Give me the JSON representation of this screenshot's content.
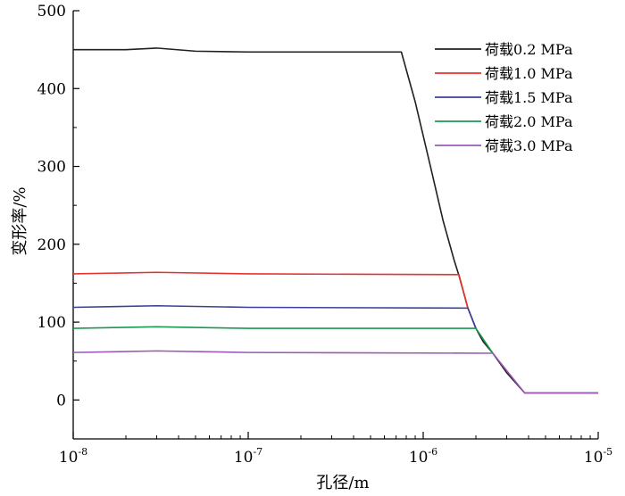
{
  "chart_data": {
    "type": "line",
    "xlabel": "孔径/m",
    "ylabel": "变形率/%",
    "x_scale": "log",
    "xlim": [
      1e-08,
      1e-05
    ],
    "ylim": [
      -50,
      500
    ],
    "x_ticks": [
      {
        "value": 1e-08,
        "base": "10",
        "exp": "-8"
      },
      {
        "value": 1e-07,
        "base": "10",
        "exp": "-7"
      },
      {
        "value": 1e-06,
        "base": "10",
        "exp": "-6"
      },
      {
        "value": 1e-05,
        "base": "10",
        "exp": "-5"
      }
    ],
    "y_ticks": [
      0,
      100,
      200,
      300,
      400,
      500
    ],
    "grid": false,
    "legend_position": "top-right",
    "curve": {
      "x": [
        1.6e-06,
        1.8e-06,
        2e-06,
        2.2e-06,
        2.5e-06,
        3e-06,
        3.8e-06,
        1e-05
      ],
      "y": [
        160,
        118,
        92,
        75,
        60,
        35,
        9,
        9
      ]
    },
    "series": [
      {
        "name": "荷载0.2 MPa",
        "color": "#231f20",
        "x": [
          1e-08,
          2e-08,
          3e-08,
          5e-08,
          1e-07,
          2e-07,
          4e-07,
          7.5e-07,
          9e-07,
          1.1e-06,
          1.3e-06,
          1.5e-06,
          1.6e-06
        ],
        "y": [
          450,
          450,
          452,
          448,
          447,
          447,
          447,
          447,
          383,
          300,
          230,
          180,
          160
        ]
      },
      {
        "name": "荷载1.0 MPa",
        "color": "#e8312f",
        "x": [
          1e-08,
          3e-08,
          1e-07,
          1.6e-06,
          1.8e-06
        ],
        "y": [
          162,
          164,
          162,
          161,
          118
        ]
      },
      {
        "name": "荷载1.5 MPa",
        "color": "#3b3f98",
        "x": [
          1e-08,
          3e-08,
          1e-07,
          1.8e-06,
          2e-06
        ],
        "y": [
          119,
          121,
          119,
          118,
          92
        ]
      },
      {
        "name": "荷载2.0 MPa",
        "color": "#1a9850",
        "x": [
          1e-08,
          3e-08,
          1e-07,
          2e-06,
          2.5e-06
        ],
        "y": [
          92,
          94,
          92,
          92,
          60
        ]
      },
      {
        "name": "荷载3.0 MPa",
        "color": "#9b59b6",
        "x": [
          1e-08,
          3e-08,
          1e-07,
          2.5e-06,
          3.8e-06,
          1e-05
        ],
        "y": [
          61,
          63,
          61,
          60,
          9,
          9
        ]
      }
    ]
  }
}
